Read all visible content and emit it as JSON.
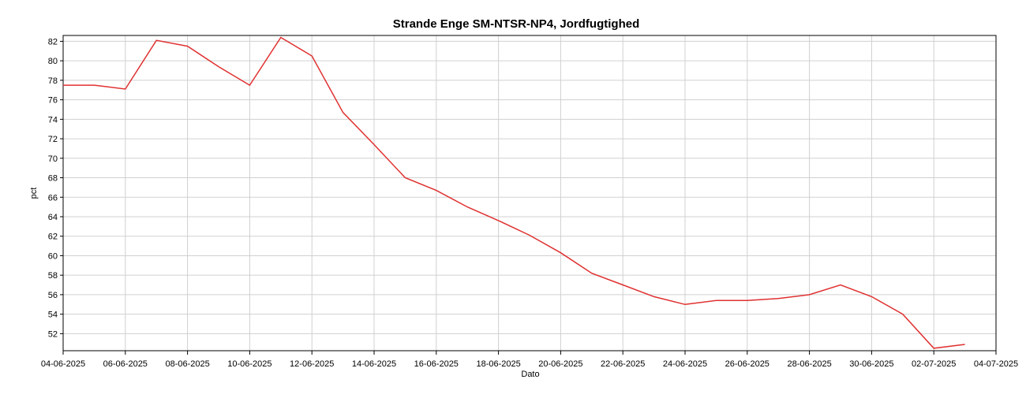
{
  "chart_data": {
    "type": "line",
    "title": "Strande Enge SM-NTSR-NP4, Jordfugtighed",
    "xlabel": "Dato",
    "ylabel": "pct",
    "x": [
      "04-06-2025",
      "05-06-2025",
      "06-06-2025",
      "07-06-2025",
      "08-06-2025",
      "09-06-2025",
      "10-06-2025",
      "11-06-2025",
      "12-06-2025",
      "13-06-2025",
      "14-06-2025",
      "15-06-2025",
      "16-06-2025",
      "17-06-2025",
      "18-06-2025",
      "19-06-2025",
      "20-06-2025",
      "21-06-2025",
      "22-06-2025",
      "23-06-2025",
      "24-06-2025",
      "25-06-2025",
      "26-06-2025",
      "27-06-2025",
      "28-06-2025",
      "29-06-2025",
      "30-06-2025",
      "01-07-2025",
      "02-07-2025",
      "03-07-2025"
    ],
    "series": [
      {
        "name": "Jordfugtighed",
        "color": "#e03030",
        "values": [
          77.5,
          77.5,
          77.1,
          82.1,
          81.5,
          79.4,
          77.5,
          82.4,
          80.5,
          74.7,
          71.4,
          68.0,
          66.7,
          65.0,
          63.6,
          62.1,
          60.3,
          58.2,
          57.0,
          55.8,
          55.0,
          55.4,
          55.4,
          55.6,
          56.0,
          57.0,
          55.8,
          54.0,
          50.5,
          50.9
        ]
      }
    ],
    "xlim": [
      "04-06-2025",
      "04-07-2025"
    ],
    "xticks": [
      "04-06-2025",
      "06-06-2025",
      "08-06-2025",
      "10-06-2025",
      "12-06-2025",
      "14-06-2025",
      "16-06-2025",
      "18-06-2025",
      "20-06-2025",
      "22-06-2025",
      "24-06-2025",
      "26-06-2025",
      "28-06-2025",
      "30-06-2025",
      "02-07-2025",
      "04-07-2025"
    ],
    "ylim": [
      50.25,
      82.6
    ],
    "yticks": [
      52,
      54,
      56,
      58,
      60,
      62,
      64,
      66,
      68,
      70,
      72,
      74,
      76,
      78,
      80,
      82
    ],
    "grid": true
  }
}
